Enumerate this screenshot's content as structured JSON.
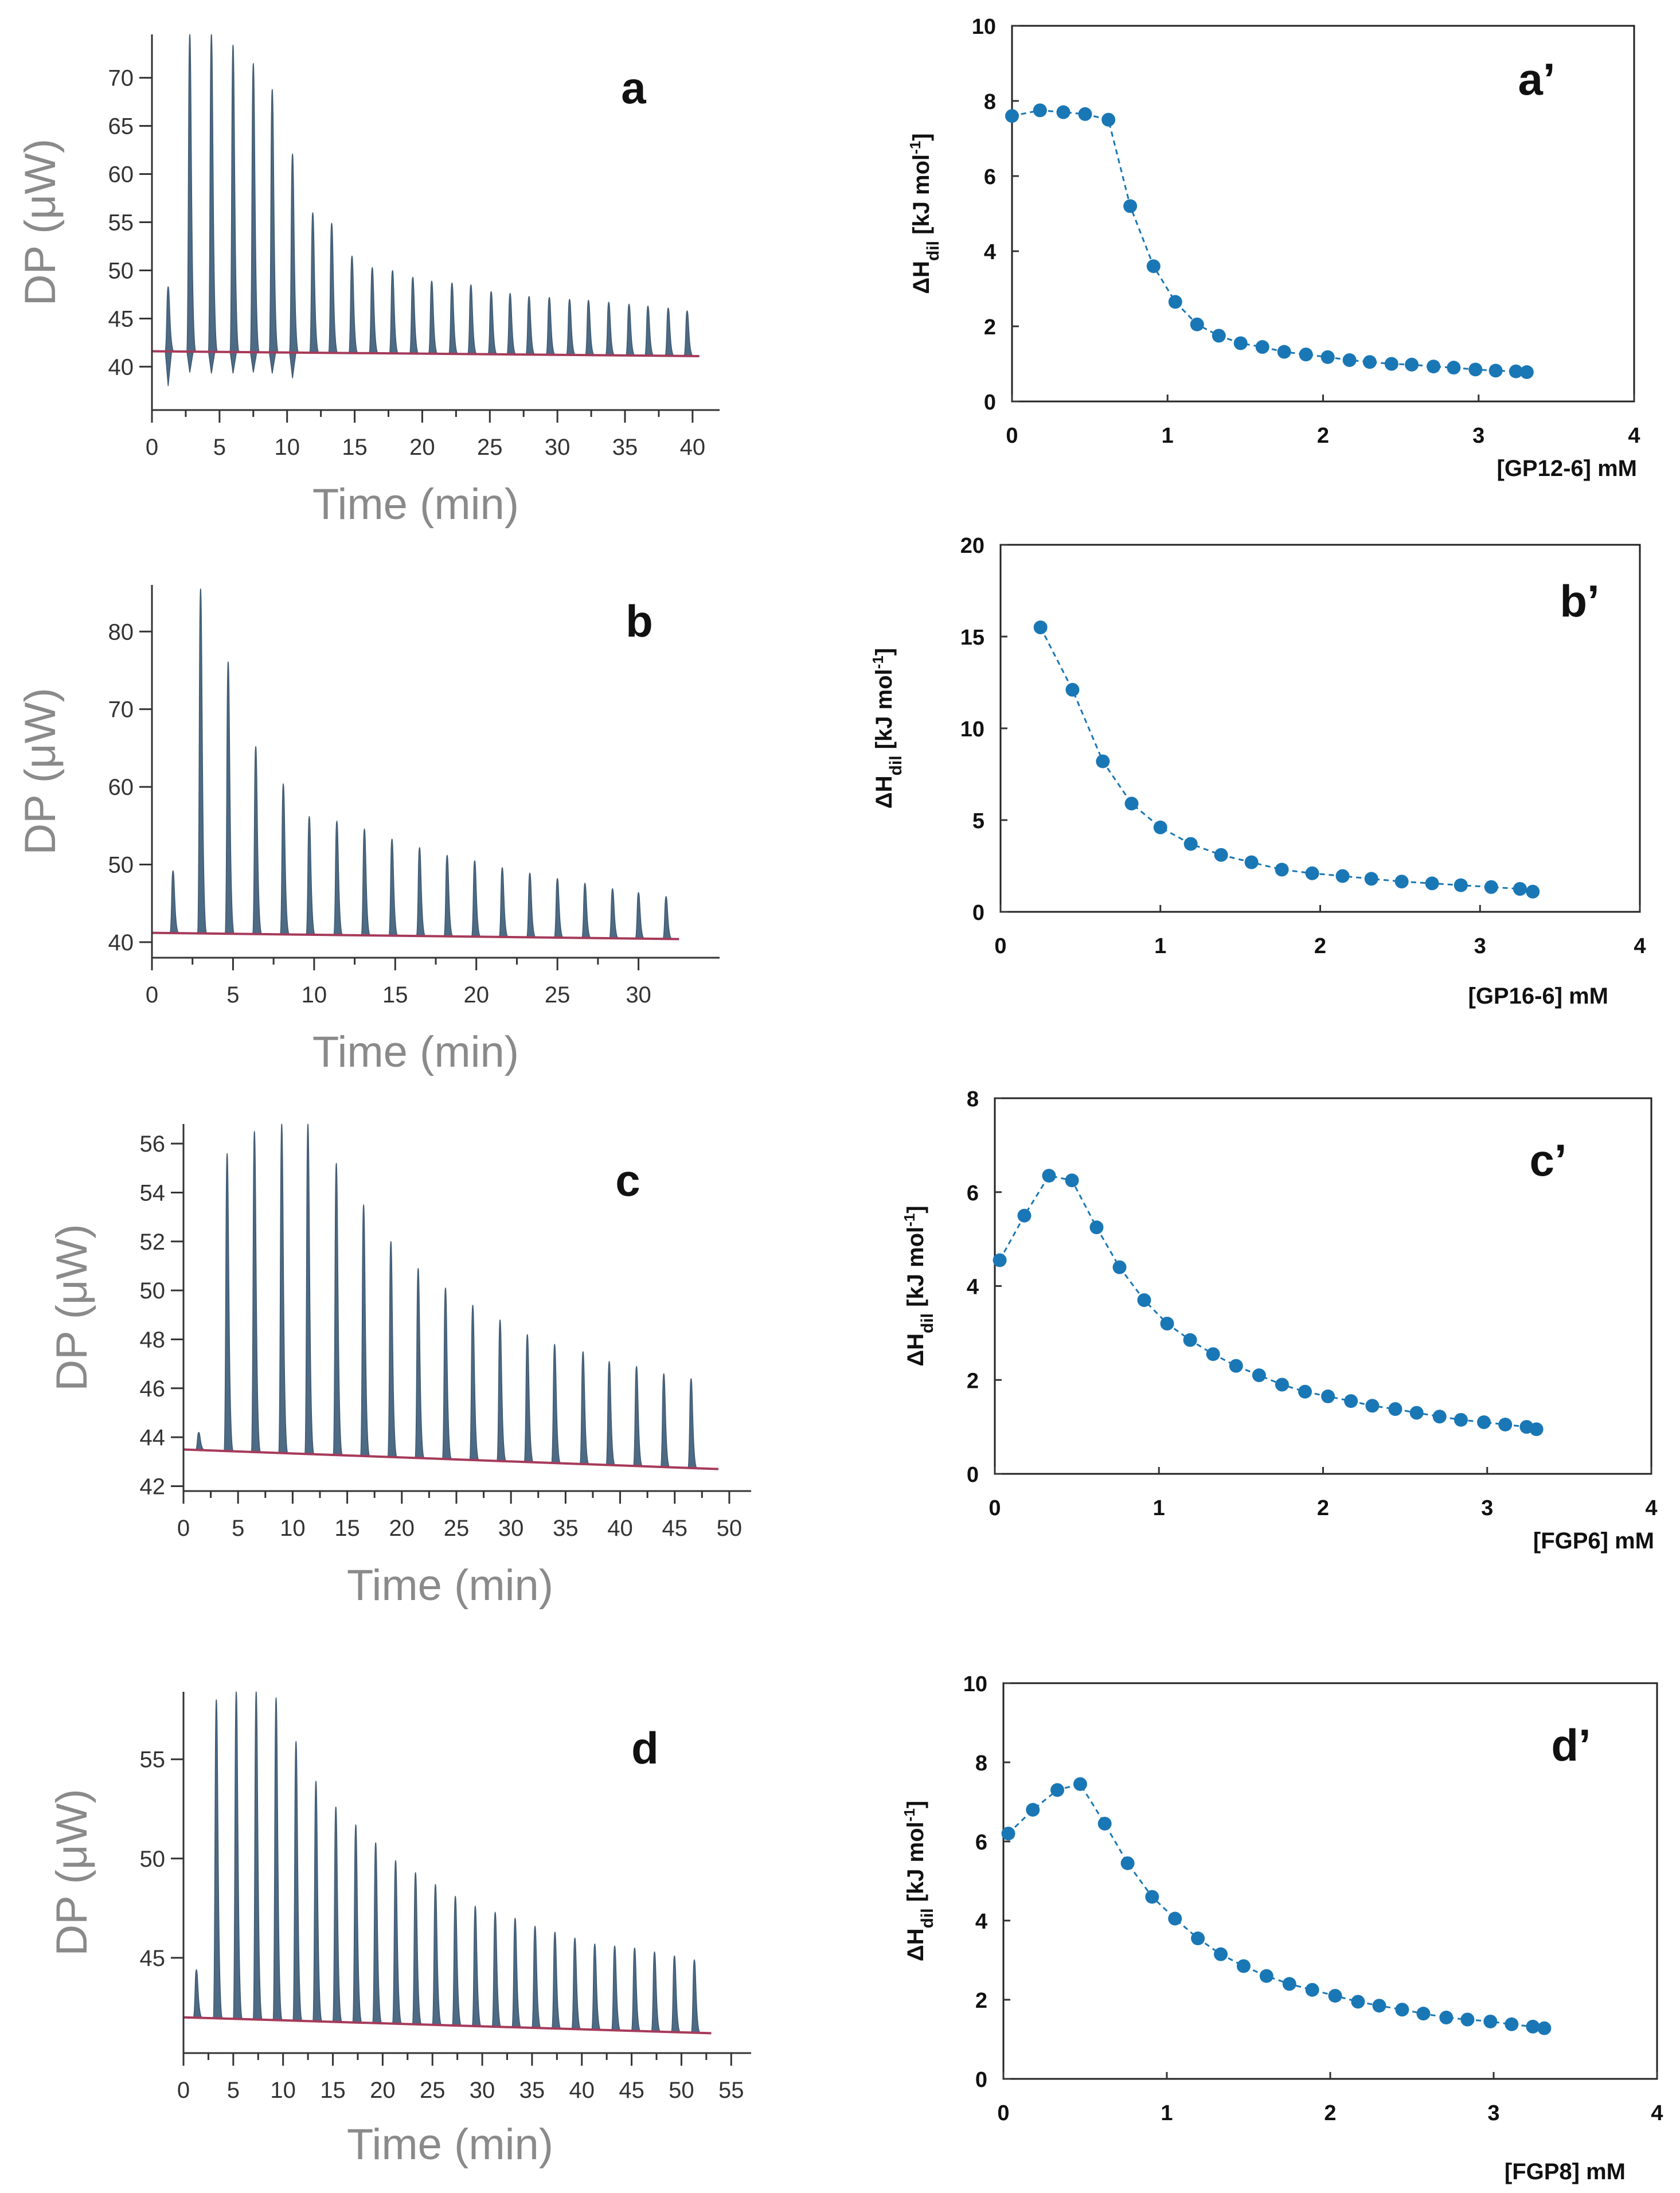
{
  "colors": {
    "peak_fill": "#4d6b85",
    "baseline": "#a63a5a",
    "isotherm": "#1a77b5",
    "axis_text_gray": "#8a8a8a"
  },
  "chart_data": [
    {
      "id": "a",
      "type": "line",
      "panel_label": "a",
      "xlabel": "Time (min)",
      "ylabel": "DP (μW)",
      "xlim": [
        0,
        42
      ],
      "ylim": [
        35.5,
        74.5
      ],
      "xticks": [
        0,
        5,
        10,
        15,
        20,
        25,
        30,
        35,
        40
      ],
      "yticks": [
        40,
        45,
        50,
        55,
        60,
        65,
        70
      ],
      "baseline": [
        [
          0,
          41.6
        ],
        [
          40.5,
          41.1
        ]
      ],
      "peaks_x": [
        1.2,
        2.8,
        4.4,
        6.0,
        7.5,
        8.9,
        10.4,
        11.9,
        13.3,
        14.8,
        16.3,
        17.8,
        19.3,
        20.7,
        22.2,
        23.6,
        25.1,
        26.5,
        27.9,
        29.4,
        30.9,
        32.3,
        33.8,
        35.3,
        36.7,
        38.2,
        39.6
      ],
      "peaks_y": [
        48.3,
        74.5,
        74.5,
        73.4,
        71.5,
        68.8,
        62.1,
        56.0,
        54.9,
        51.5,
        50.3,
        50.0,
        49.3,
        48.9,
        48.7,
        48.5,
        47.8,
        47.6,
        47.3,
        47.2,
        47.0,
        46.9,
        46.7,
        46.5,
        46.3,
        46.1,
        45.8
      ],
      "trough_y": [
        38.0,
        39.4,
        39.3,
        39.3,
        39.4,
        39.3,
        38.8
      ]
    },
    {
      "id": "b",
      "type": "line",
      "panel_label": "b",
      "xlabel": "Time (min)",
      "ylabel": "DP (μW)",
      "xlim": [
        0,
        35
      ],
      "ylim": [
        38,
        86
      ],
      "xticks": [
        0,
        5,
        10,
        15,
        20,
        25,
        30
      ],
      "yticks": [
        40,
        50,
        60,
        70,
        80
      ],
      "baseline": [
        [
          0,
          41.2
        ],
        [
          32.5,
          40.4
        ]
      ],
      "peaks_x": [
        1.3,
        3.0,
        4.7,
        6.4,
        8.1,
        9.7,
        11.4,
        13.1,
        14.8,
        16.5,
        18.2,
        19.9,
        21.6,
        23.3,
        25.0,
        26.7,
        28.4,
        30.0,
        31.7
      ],
      "peaks_y": [
        49.2,
        85.5,
        76.1,
        65.2,
        60.4,
        56.2,
        55.6,
        54.6,
        53.3,
        52.2,
        51.2,
        50.5,
        49.6,
        48.9,
        48.2,
        47.6,
        46.9,
        46.4,
        45.9
      ]
    },
    {
      "id": "c",
      "type": "line",
      "panel_label": "c",
      "xlabel": "Time (min)",
      "ylabel": "DP (μW)",
      "xlim": [
        0,
        52
      ],
      "ylim": [
        41.8,
        56.8
      ],
      "xticks": [
        0,
        5,
        10,
        15,
        20,
        25,
        30,
        35,
        40,
        45,
        50
      ],
      "yticks": [
        42,
        44,
        46,
        48,
        50,
        52,
        54,
        56
      ],
      "baseline": [
        [
          0,
          43.5
        ],
        [
          49,
          42.7
        ]
      ],
      "peaks_x": [
        1.4,
        4.0,
        6.5,
        9.0,
        11.4,
        14.0,
        16.5,
        19.0,
        21.5,
        24.0,
        26.5,
        29.0,
        31.5,
        34.0,
        36.6,
        39.0,
        41.5,
        44.0,
        46.5
      ],
      "peaks_y": [
        44.2,
        55.6,
        56.5,
        56.8,
        56.8,
        55.2,
        53.5,
        52.0,
        50.9,
        50.1,
        49.4,
        48.8,
        48.2,
        47.8,
        47.5,
        47.1,
        46.9,
        46.6,
        46.4
      ]
    },
    {
      "id": "d",
      "type": "line",
      "panel_label": "d",
      "xlabel": "Time (min)",
      "ylabel": "DP (μW)",
      "xlim": [
        0,
        57
      ],
      "ylim": [
        40.2,
        58.4
      ],
      "xticks": [
        0,
        5,
        10,
        15,
        20,
        25,
        30,
        35,
        40,
        45,
        50,
        55
      ],
      "yticks": [
        45,
        50,
        55
      ],
      "baseline": [
        [
          0,
          42.0
        ],
        [
          53,
          41.2
        ]
      ],
      "peaks_x": [
        1.3,
        3.3,
        5.3,
        7.3,
        9.3,
        11.3,
        13.3,
        15.3,
        17.3,
        19.3,
        21.3,
        23.3,
        25.3,
        27.3,
        29.3,
        31.3,
        33.3,
        35.3,
        37.3,
        39.3,
        41.3,
        43.3,
        45.3,
        47.3,
        49.3,
        51.3
      ],
      "peaks_y": [
        44.4,
        58.0,
        58.4,
        58.4,
        58.1,
        55.9,
        53.9,
        52.6,
        51.7,
        50.8,
        49.9,
        49.3,
        48.7,
        48.1,
        47.6,
        47.3,
        47.0,
        46.6,
        46.3,
        46.0,
        45.7,
        45.6,
        45.5,
        45.3,
        45.1,
        44.9
      ]
    },
    {
      "id": "a_prime",
      "type": "scatter",
      "panel_label": "a’",
      "xlabel": "[GP12-6] mM",
      "ylabel_main": "ΔH",
      "ylabel_sub": "dil",
      "ylabel_unit": " [kJ mol",
      "ylabel_sup": "-1",
      "ylabel_close": "]",
      "xlim": [
        0,
        4
      ],
      "ylim": [
        0,
        10
      ],
      "xticks": [
        0,
        1,
        2,
        3,
        4
      ],
      "yticks": [
        0,
        2,
        4,
        6,
        8,
        10
      ],
      "x": [
        0.0,
        0.18,
        0.33,
        0.47,
        0.62,
        0.76,
        0.91,
        1.05,
        1.19,
        1.33,
        1.47,
        1.61,
        1.75,
        1.89,
        2.03,
        2.17,
        2.3,
        2.44,
        2.57,
        2.71,
        2.84,
        2.98,
        3.11,
        3.24,
        3.31
      ],
      "y": [
        7.6,
        7.75,
        7.7,
        7.65,
        7.5,
        5.2,
        3.6,
        2.65,
        2.05,
        1.75,
        1.55,
        1.45,
        1.32,
        1.25,
        1.18,
        1.1,
        1.05,
        1.0,
        0.98,
        0.93,
        0.9,
        0.85,
        0.82,
        0.8,
        0.78
      ]
    },
    {
      "id": "b_prime",
      "type": "scatter",
      "panel_label": "b’",
      "xlabel": "[GP16-6] mM",
      "ylabel_main": "ΔH",
      "ylabel_sub": "dil",
      "ylabel_unit": " [kJ mol",
      "ylabel_sup": "-1",
      "ylabel_close": "]",
      "xlim": [
        0,
        4
      ],
      "ylim": [
        0,
        20
      ],
      "xticks": [
        0,
        1,
        2,
        3,
        4
      ],
      "yticks": [
        0,
        5,
        10,
        15,
        20
      ],
      "x": [
        0.25,
        0.45,
        0.64,
        0.82,
        1.0,
        1.19,
        1.38,
        1.57,
        1.76,
        1.95,
        2.14,
        2.32,
        2.51,
        2.7,
        2.88,
        3.07,
        3.25,
        3.33
      ],
      "y": [
        15.5,
        12.1,
        8.2,
        5.9,
        4.6,
        3.7,
        3.1,
        2.7,
        2.3,
        2.1,
        1.95,
        1.8,
        1.65,
        1.55,
        1.45,
        1.35,
        1.25,
        1.1
      ]
    },
    {
      "id": "c_prime",
      "type": "scatter",
      "panel_label": "c’",
      "xlabel": "[FGP6] mM",
      "ylabel_main": "ΔH",
      "ylabel_sub": "dil",
      "ylabel_unit": " [kJ mol",
      "ylabel_sup": "-1",
      "ylabel_close": "]",
      "xlim": [
        0,
        4
      ],
      "ylim": [
        0,
        8
      ],
      "xticks": [
        0,
        1,
        2,
        3,
        4
      ],
      "yticks": [
        0,
        2,
        4,
        6,
        8
      ],
      "x": [
        0.03,
        0.18,
        0.33,
        0.47,
        0.62,
        0.76,
        0.91,
        1.05,
        1.19,
        1.33,
        1.47,
        1.61,
        1.75,
        1.89,
        2.03,
        2.17,
        2.3,
        2.44,
        2.57,
        2.71,
        2.84,
        2.98,
        3.11,
        3.24,
        3.3
      ],
      "y": [
        4.55,
        5.5,
        6.35,
        6.25,
        5.25,
        4.4,
        3.7,
        3.2,
        2.85,
        2.55,
        2.3,
        2.1,
        1.9,
        1.75,
        1.65,
        1.55,
        1.45,
        1.38,
        1.3,
        1.22,
        1.15,
        1.1,
        1.05,
        1.0,
        0.95
      ]
    },
    {
      "id": "d_prime",
      "type": "scatter",
      "panel_label": "d’",
      "xlabel": "[FGP8] mM",
      "ylabel_main": "ΔH",
      "ylabel_sub": "dil",
      "ylabel_unit": " [kJ mol",
      "ylabel_sup": "-1",
      "ylabel_close": "]",
      "xlim": [
        0,
        4
      ],
      "ylim": [
        0,
        10
      ],
      "xticks": [
        0,
        1,
        2,
        3,
        4
      ],
      "yticks": [
        0,
        2,
        4,
        6,
        8,
        10
      ],
      "x": [
        0.03,
        0.18,
        0.33,
        0.47,
        0.62,
        0.76,
        0.91,
        1.05,
        1.19,
        1.33,
        1.47,
        1.61,
        1.75,
        1.89,
        2.03,
        2.17,
        2.3,
        2.44,
        2.57,
        2.71,
        2.84,
        2.98,
        3.11,
        3.24,
        3.31
      ],
      "y": [
        6.2,
        6.8,
        7.3,
        7.45,
        6.45,
        5.45,
        4.6,
        4.05,
        3.55,
        3.15,
        2.85,
        2.6,
        2.4,
        2.25,
        2.1,
        1.95,
        1.85,
        1.75,
        1.65,
        1.55,
        1.5,
        1.45,
        1.38,
        1.32,
        1.28
      ]
    }
  ]
}
